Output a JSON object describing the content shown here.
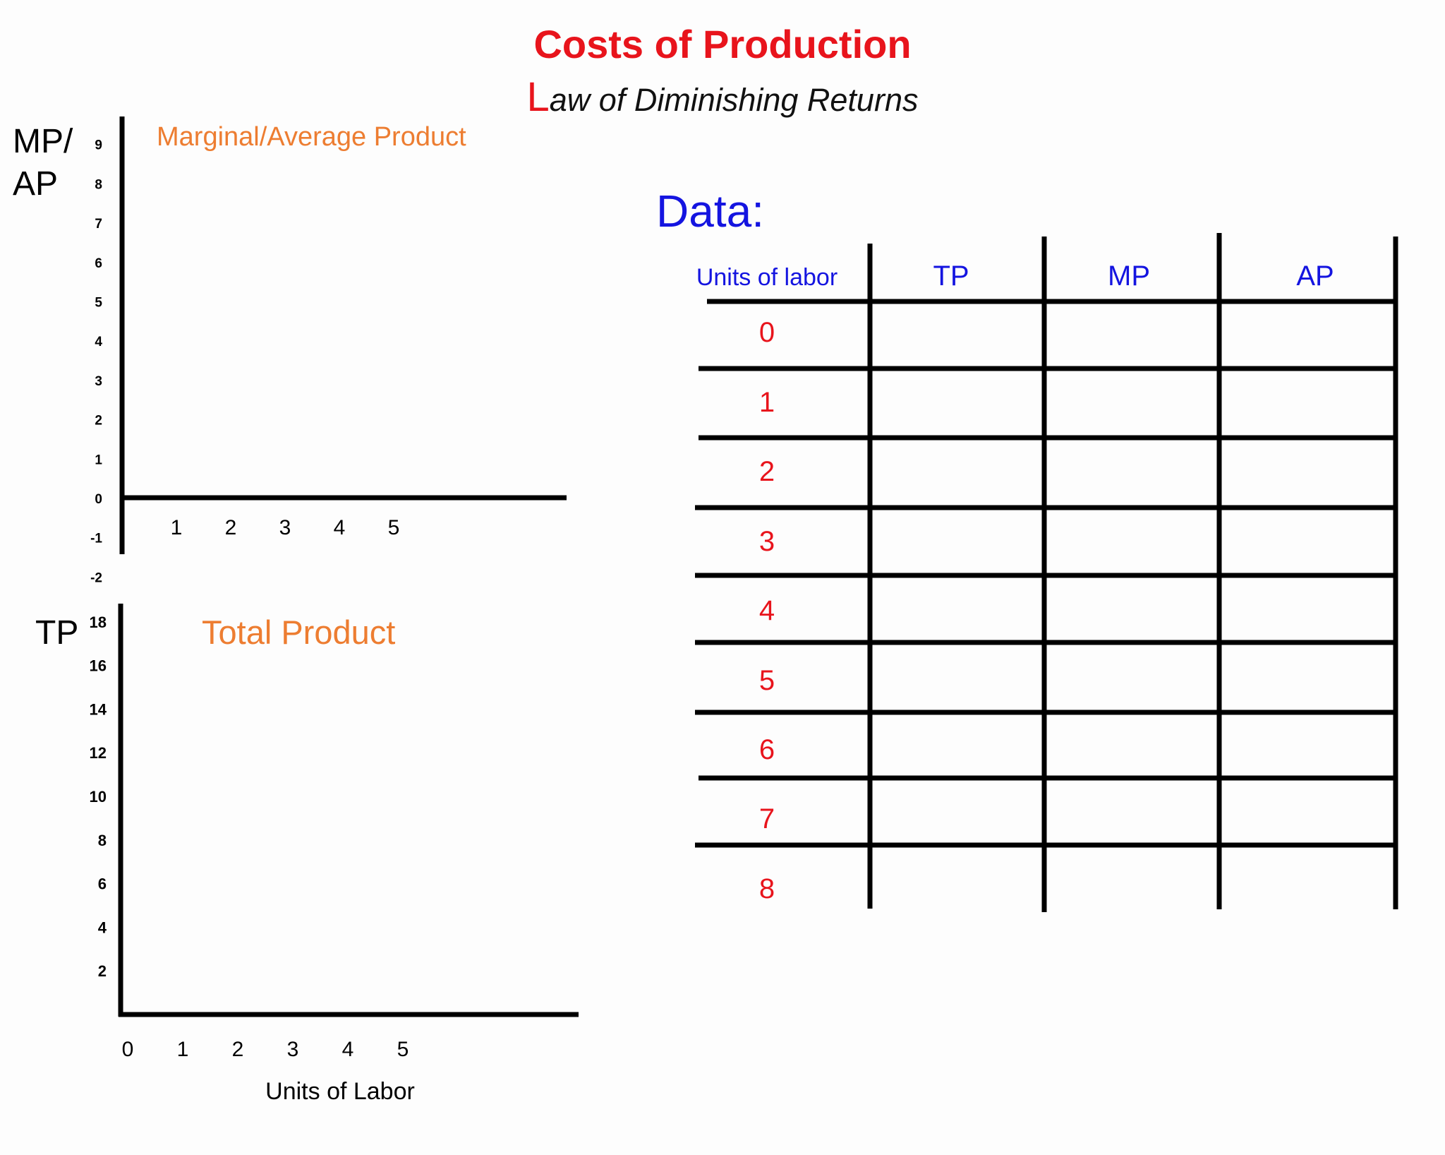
{
  "header": {
    "title": "Costs of Production",
    "subtitle_first_letter": "L",
    "subtitle_rest": "aw of Diminishing Returns"
  },
  "colors": {
    "title": "#e8141c",
    "chart_title": "#ed7d31",
    "table_header": "#1414e0",
    "table_labor": "#e8141c"
  },
  "chart_data": [
    {
      "type": "line",
      "title": "Marginal/Average Product",
      "ylabel": "MP/\nAP",
      "xlabel": "",
      "x_ticks": [
        1,
        2,
        3,
        4,
        5
      ],
      "y_ticks": [
        9,
        8,
        7,
        6,
        5,
        4,
        3,
        2,
        1,
        0,
        -1,
        -2
      ],
      "ylim": [
        -2,
        9
      ],
      "series": []
    },
    {
      "type": "line",
      "title": "Total Product",
      "ylabel": "TP",
      "xlabel": "Units of Labor",
      "x_ticks": [
        0,
        1,
        2,
        3,
        4,
        5
      ],
      "y_ticks": [
        18,
        16,
        14,
        12,
        10,
        8,
        6,
        4,
        2
      ],
      "ylim": [
        0,
        18
      ],
      "series": []
    }
  ],
  "table": {
    "heading": "Data:",
    "columns": [
      "Units of labor",
      "TP",
      "MP",
      "AP"
    ],
    "labor_values": [
      "0",
      "1",
      "2",
      "3",
      "4",
      "5",
      "6",
      "7",
      "8"
    ]
  }
}
